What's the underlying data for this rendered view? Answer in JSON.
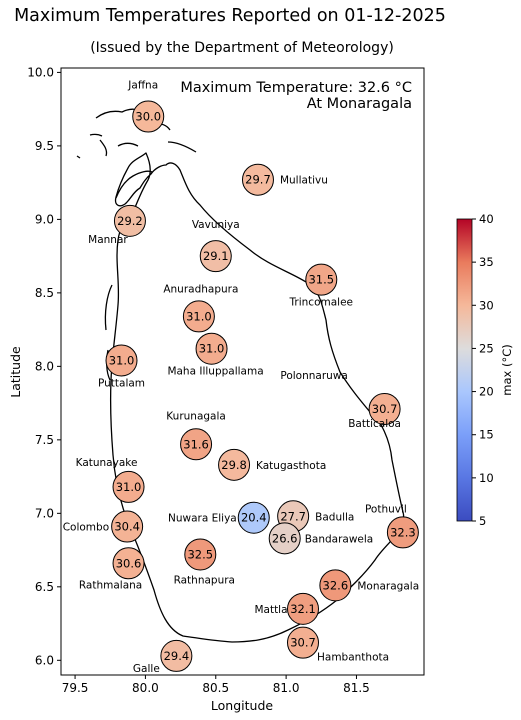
{
  "title": "Maximum Temperatures Reported on 01-12-2025",
  "subtitle": "(Issued by the Department of Meteorology)",
  "annotation": {
    "line1": "Maximum Temperature: 32.6 °C",
    "line2": "At Monaragala"
  },
  "axes": {
    "xlabel": "Longitude",
    "ylabel": "Latitude",
    "xlim": [
      79.4,
      81.98
    ],
    "ylim": [
      5.9,
      10.03
    ],
    "xticks": [
      "79.5",
      "80.0",
      "80.5",
      "81.0",
      "81.5"
    ],
    "yticks": [
      "6.0",
      "6.5",
      "7.0",
      "7.5",
      "8.0",
      "8.5",
      "9.0",
      "9.5",
      "10.0"
    ]
  },
  "colorbar": {
    "label": "max (°C)",
    "min": 5,
    "max": 40,
    "ticks": [
      "5",
      "10",
      "15",
      "20",
      "25",
      "30",
      "35",
      "40"
    ],
    "colormap": "coolwarm"
  },
  "stations": [
    {
      "name": "Jaffna",
      "lon": 80.02,
      "lat": 9.7,
      "temp": 30.0
    },
    {
      "name": "Mullativu",
      "lon": 80.8,
      "lat": 9.27,
      "temp": 29.7
    },
    {
      "name": "Mannar",
      "lon": 79.89,
      "lat": 8.99,
      "temp": 29.2
    },
    {
      "name": "Vavuniya",
      "lon": 80.5,
      "lat": 8.75,
      "temp": 29.1
    },
    {
      "name": "Trincomalee",
      "lon": 81.25,
      "lat": 8.59,
      "temp": 31.5
    },
    {
      "name": "Anuradhapura",
      "lon": 80.38,
      "lat": 8.34,
      "temp": 31.0
    },
    {
      "name": "Maha Illuppallama",
      "lon": 80.47,
      "lat": 8.12,
      "temp": 31.0
    },
    {
      "name": "Puttalam",
      "lon": 79.83,
      "lat": 8.04,
      "temp": 31.0
    },
    {
      "name": "Polonnaruwa",
      "lon": 81.0,
      "lat": 7.94,
      "temp": null
    },
    {
      "name": "Batticaloa",
      "lon": 81.7,
      "lat": 7.71,
      "temp": 30.7
    },
    {
      "name": "Kurunagala",
      "lon": 80.36,
      "lat": 7.47,
      "temp": 31.6
    },
    {
      "name": "Katugasthota",
      "lon": 80.63,
      "lat": 7.33,
      "temp": 29.8
    },
    {
      "name": "Katunayake",
      "lon": 79.88,
      "lat": 7.18,
      "temp": 31.0
    },
    {
      "name": "Nuwara Eliya",
      "lon": 80.77,
      "lat": 6.97,
      "temp": 20.4
    },
    {
      "name": "Badulla",
      "lon": 81.05,
      "lat": 6.98,
      "temp": 27.7
    },
    {
      "name": "Pothuvil",
      "lon": 81.83,
      "lat": 6.87,
      "temp": 32.3
    },
    {
      "name": "Colombo",
      "lon": 79.87,
      "lat": 6.91,
      "temp": 30.4
    },
    {
      "name": "Bandarawela",
      "lon": 80.99,
      "lat": 6.83,
      "temp": 26.6
    },
    {
      "name": "Rathnapura",
      "lon": 80.39,
      "lat": 6.72,
      "temp": 32.5
    },
    {
      "name": "Rathmalana",
      "lon": 79.88,
      "lat": 6.66,
      "temp": 30.6
    },
    {
      "name": "Monaragala",
      "lon": 81.35,
      "lat": 6.51,
      "temp": 32.6
    },
    {
      "name": "Mattla",
      "lon": 81.12,
      "lat": 6.35,
      "temp": 32.1
    },
    {
      "name": "Hambanthota",
      "lon": 81.12,
      "lat": 6.12,
      "temp": 30.7
    },
    {
      "name": "Galle",
      "lon": 80.22,
      "lat": 6.03,
      "temp": 29.4
    }
  ]
}
